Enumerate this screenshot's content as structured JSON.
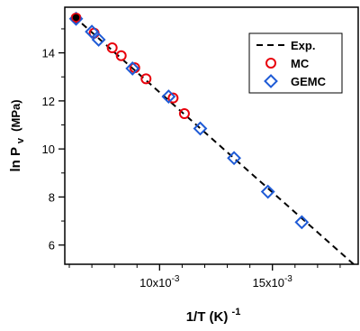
{
  "chart_data": {
    "type": "scatter",
    "xlabel": {
      "main": "1/T (K)",
      "sup": "-1"
    },
    "ylabel": {
      "main": "ln P",
      "sub": "v",
      "unit": "(MPa)"
    },
    "xlim": [
      0.0058,
      0.0188
    ],
    "ylim": [
      5.2,
      15.9
    ],
    "x_ticks": [
      {
        "value": 0.01,
        "mantissa": "10x10",
        "exp": "-3"
      },
      {
        "value": 0.015,
        "mantissa": "15x10",
        "exp": "-3"
      }
    ],
    "y_ticks": [
      6,
      8,
      10,
      12,
      14
    ],
    "legend": {
      "position": "top-right",
      "entries": [
        {
          "label": "Exp.",
          "marker": "dashed-line",
          "color": "#000000"
        },
        {
          "label": "MC",
          "marker": "circle",
          "color": "#e8000b"
        },
        {
          "label": "GEMC",
          "marker": "diamond",
          "color": "#1f5bd6"
        }
      ]
    },
    "series": [
      {
        "name": "Exp.",
        "kind": "line",
        "color": "#000000",
        "points": [
          [
            0.0062,
            15.52
          ],
          [
            0.0189,
            4.95
          ]
        ]
      },
      {
        "name": "MC",
        "kind": "circle",
        "color": "#e8000b",
        "points": [
          [
            0.0063,
            15.45
          ],
          [
            0.0071,
            14.82
          ],
          [
            0.0079,
            14.21
          ],
          [
            0.0083,
            13.88
          ],
          [
            0.0089,
            13.38
          ],
          [
            0.0094,
            12.92
          ],
          [
            0.0106,
            12.12
          ],
          [
            0.0111,
            11.47
          ]
        ]
      },
      {
        "name": "GEMC",
        "kind": "diamond",
        "color": "#1f5bd6",
        "points": [
          [
            0.0063,
            15.42
          ],
          [
            0.007,
            14.88
          ],
          [
            0.0073,
            14.55
          ],
          [
            0.0088,
            13.35
          ],
          [
            0.0104,
            12.18
          ],
          [
            0.0118,
            10.85
          ],
          [
            0.0133,
            9.62
          ],
          [
            0.0148,
            8.22
          ],
          [
            0.0163,
            6.95
          ]
        ]
      },
      {
        "name": "",
        "kind": "filled-circle",
        "color": "#000000",
        "points": [
          [
            0.0063,
            15.47
          ]
        ]
      }
    ]
  }
}
